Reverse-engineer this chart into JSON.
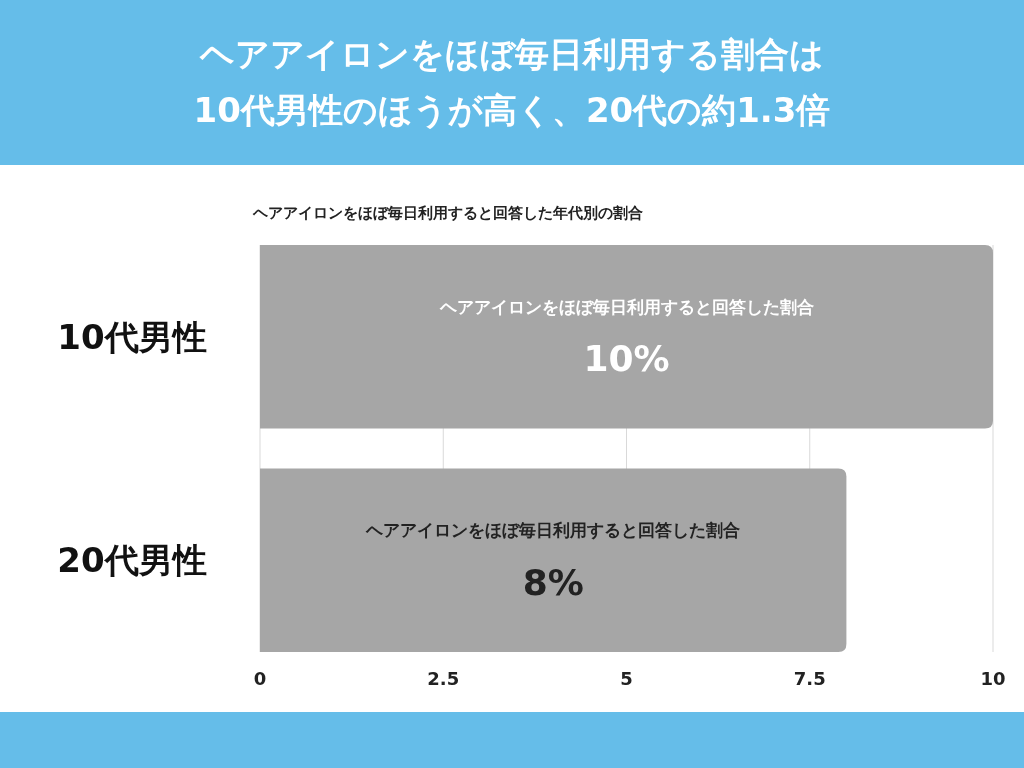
{
  "chart_data": {
    "type": "bar",
    "orientation": "horizontal",
    "title": "ヘアアイロンをほぼ毎日利用する割合は\n10代男性のほうが高く、20代の約1.3倍",
    "subtitle": "ヘアアイロンをほぼ毎日利用すると回答した年代別の割合",
    "categories": [
      "10代男性",
      "20代男性"
    ],
    "series": [
      {
        "name": "ヘアアイロンをほぼ毎日利用すると回答した割合",
        "color": "#a6a6a6",
        "values": [
          10,
          8
        ],
        "value_labels": [
          "10%",
          "8%"
        ]
      }
    ],
    "xlim": [
      0,
      10
    ],
    "xticks": [
      0,
      2.5,
      5,
      7.5,
      10
    ],
    "grid": "x"
  }
}
